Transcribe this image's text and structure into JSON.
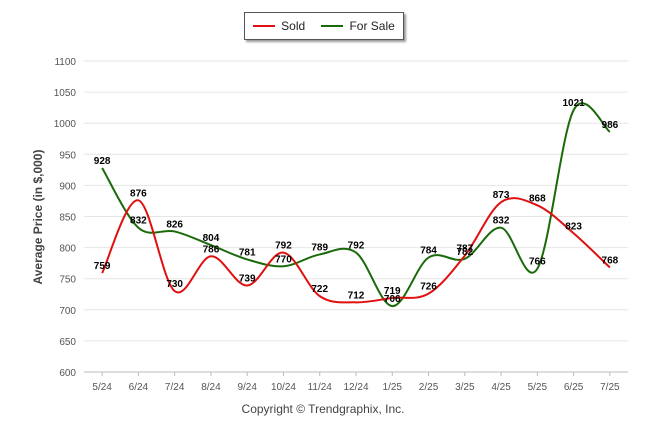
{
  "chart_data": {
    "type": "line",
    "categories": [
      "5/24",
      "6/24",
      "7/24",
      "8/24",
      "9/24",
      "10/24",
      "11/24",
      "12/24",
      "1/25",
      "2/25",
      "3/25",
      "4/25",
      "5/25",
      "6/25",
      "7/25"
    ],
    "series": [
      {
        "name": "Sold",
        "color": "#e01010",
        "values": [
          759,
          876,
          730,
          786,
          739,
          792,
          722,
          712,
          719,
          726,
          787,
          873,
          868,
          823,
          768
        ]
      },
      {
        "name": "For Sale",
        "color": "#1a6a0a",
        "values": [
          928,
          832,
          826,
          804,
          781,
          770,
          789,
          792,
          706,
          784,
          782,
          832,
          766,
          1021,
          986
        ]
      }
    ],
    "ylabel": "Average Price (in $,000)",
    "xlabel": "",
    "ylim": [
      600,
      1100
    ],
    "yticks": [
      600,
      650,
      700,
      750,
      800,
      850,
      900,
      950,
      1000,
      1050,
      1100
    ],
    "grid": true,
    "legend_position": "top-center"
  },
  "legend": {
    "sold_label": "Sold",
    "for_sale_label": "For Sale"
  },
  "footer": {
    "copyright": "Copyright © Trendgraphix, Inc."
  }
}
